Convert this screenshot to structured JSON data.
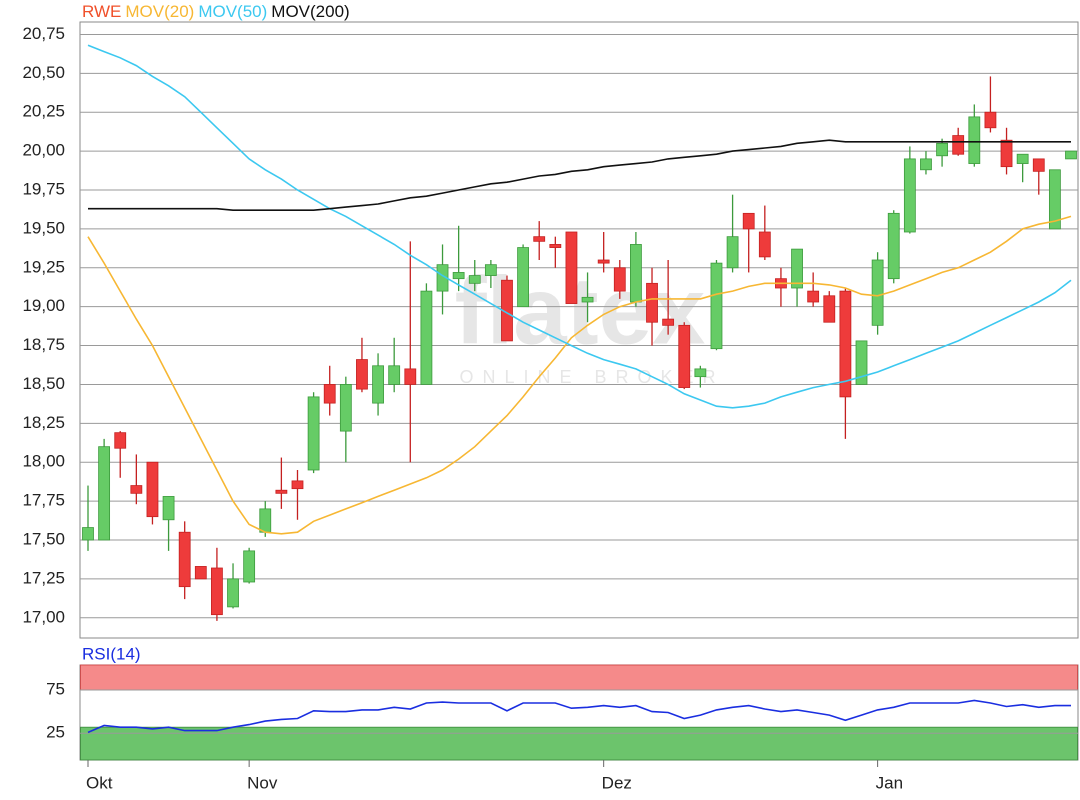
{
  "chart_data": [
    {
      "type": "candlestick",
      "name": "RWE",
      "name_color": "#f0502a",
      "up_color": "#66cc66",
      "up_edge": "#3c9a3c",
      "down_color": "#ee3b3b",
      "down_edge": "#c42020",
      "open": [
        17.5,
        17.5,
        18.19,
        17.85,
        18.0,
        17.63,
        17.55,
        17.33,
        17.32,
        17.07,
        17.23,
        17.55,
        17.82,
        17.88,
        17.95,
        18.5,
        18.2,
        18.66,
        18.38,
        18.5,
        18.6,
        18.5,
        19.1,
        19.18,
        19.15,
        19.2,
        19.17,
        19.0,
        19.45,
        19.4,
        19.48,
        19.03,
        19.3,
        19.25,
        19.03,
        19.15,
        18.92,
        18.88,
        18.55,
        18.73,
        19.25,
        19.6,
        19.48,
        19.18,
        19.12,
        19.1,
        19.07,
        19.1,
        18.5,
        18.88,
        19.18,
        19.48,
        19.88,
        19.97,
        20.1,
        19.92,
        20.25,
        20.07,
        19.92,
        19.95,
        19.5,
        19.95
      ],
      "high": [
        17.85,
        18.15,
        18.2,
        18.05,
        18.0,
        17.78,
        17.62,
        17.33,
        17.45,
        17.35,
        17.45,
        17.75,
        18.03,
        17.95,
        18.45,
        18.62,
        18.55,
        18.8,
        18.7,
        18.8,
        19.42,
        19.15,
        19.4,
        19.52,
        19.3,
        19.3,
        19.2,
        19.4,
        19.55,
        19.45,
        19.48,
        19.22,
        19.48,
        19.3,
        19.48,
        19.25,
        19.3,
        18.9,
        18.62,
        19.3,
        19.72,
        19.6,
        19.65,
        19.25,
        19.37,
        19.22,
        19.1,
        19.12,
        18.78,
        19.35,
        19.62,
        20.03,
        20.0,
        20.08,
        20.15,
        20.3,
        20.48,
        20.15,
        19.98,
        19.95,
        19.88,
        20.0
      ],
      "low": [
        17.43,
        17.5,
        17.9,
        17.73,
        17.6,
        17.43,
        17.12,
        17.25,
        16.98,
        17.06,
        17.22,
        17.52,
        17.7,
        17.63,
        17.93,
        18.3,
        18.0,
        18.45,
        18.3,
        18.45,
        18.0,
        18.5,
        18.95,
        19.1,
        19.1,
        19.12,
        18.78,
        19.0,
        19.3,
        19.25,
        19.02,
        18.9,
        19.22,
        19.05,
        19.0,
        18.75,
        18.82,
        18.47,
        18.48,
        18.72,
        19.22,
        19.22,
        19.3,
        19.0,
        19.0,
        19.0,
        18.9,
        18.15,
        18.5,
        18.82,
        19.15,
        19.47,
        19.85,
        19.9,
        19.97,
        19.9,
        20.12,
        19.85,
        19.8,
        19.72,
        19.5,
        19.95
      ],
      "close": [
        17.58,
        18.1,
        18.09,
        17.8,
        17.65,
        17.78,
        17.2,
        17.25,
        17.02,
        17.25,
        17.43,
        17.7,
        17.8,
        17.83,
        18.42,
        18.38,
        18.5,
        18.47,
        18.62,
        18.62,
        18.5,
        19.1,
        19.27,
        19.22,
        19.2,
        19.27,
        18.78,
        19.38,
        19.42,
        19.38,
        19.02,
        19.06,
        19.28,
        19.1,
        19.4,
        18.9,
        18.88,
        18.48,
        18.6,
        19.28,
        19.45,
        19.5,
        19.32,
        19.12,
        19.37,
        19.03,
        18.9,
        18.42,
        18.78,
        19.3,
        19.6,
        19.95,
        19.95,
        20.05,
        19.98,
        20.22,
        20.15,
        19.9,
        19.98,
        19.87,
        19.88,
        20.0
      ],
      "overlays": [
        {
          "name": "MOV(20)",
          "color": "#f7b733",
          "values": [
            19.45,
            19.28,
            19.1,
            18.92,
            18.75,
            18.55,
            18.35,
            18.15,
            17.95,
            17.75,
            17.6,
            17.55,
            17.54,
            17.55,
            17.62,
            17.66,
            17.7,
            17.74,
            17.78,
            17.82,
            17.86,
            17.9,
            17.95,
            18.02,
            18.1,
            18.2,
            18.3,
            18.42,
            18.55,
            18.67,
            18.8,
            18.88,
            18.95,
            19.0,
            19.03,
            19.05,
            19.05,
            19.05,
            19.05,
            19.08,
            19.1,
            19.13,
            19.15,
            19.15,
            19.15,
            19.15,
            19.14,
            19.12,
            19.08,
            19.07,
            19.1,
            19.14,
            19.18,
            19.22,
            19.25,
            19.3,
            19.35,
            19.42,
            19.5,
            19.53,
            19.55,
            19.58
          ]
        },
        {
          "name": "MOV(50)",
          "color": "#3cc8f0",
          "values": [
            20.68,
            20.64,
            20.6,
            20.55,
            20.48,
            20.42,
            20.35,
            20.25,
            20.15,
            20.05,
            19.95,
            19.88,
            19.82,
            19.75,
            19.69,
            19.63,
            19.58,
            19.52,
            19.46,
            19.4,
            19.33,
            19.27,
            19.2,
            19.14,
            19.08,
            19.02,
            18.96,
            18.9,
            18.85,
            18.8,
            18.75,
            18.7,
            18.66,
            18.63,
            18.6,
            18.55,
            18.5,
            18.44,
            18.4,
            18.36,
            18.35,
            18.36,
            18.38,
            18.42,
            18.45,
            18.48,
            18.5,
            18.52,
            18.55,
            18.58,
            18.62,
            18.66,
            18.7,
            18.74,
            18.78,
            18.83,
            18.88,
            18.93,
            18.98,
            19.03,
            19.09,
            19.17
          ]
        },
        {
          "name": "MOV(200)",
          "color": "#111111",
          "values": [
            19.63,
            19.63,
            19.63,
            19.63,
            19.63,
            19.63,
            19.63,
            19.63,
            19.63,
            19.62,
            19.62,
            19.62,
            19.62,
            19.62,
            19.62,
            19.63,
            19.64,
            19.65,
            19.66,
            19.68,
            19.7,
            19.71,
            19.73,
            19.75,
            19.77,
            19.79,
            19.8,
            19.82,
            19.84,
            19.85,
            19.87,
            19.88,
            19.9,
            19.91,
            19.92,
            19.93,
            19.95,
            19.96,
            19.97,
            19.98,
            20.0,
            20.01,
            20.02,
            20.03,
            20.05,
            20.06,
            20.07,
            20.06,
            20.06,
            20.06,
            20.06,
            20.06,
            20.06,
            20.06,
            20.06,
            20.06,
            20.06,
            20.06,
            20.06,
            20.06,
            20.06,
            20.06
          ]
        }
      ],
      "ylim": [
        16.87,
        20.83
      ],
      "yticks": [
        {
          "value": 17.0,
          "label": "17,00"
        },
        {
          "value": 17.25,
          "label": "17,25"
        },
        {
          "value": 17.5,
          "label": "17,50"
        },
        {
          "value": 17.75,
          "label": "17,75"
        },
        {
          "value": 18.0,
          "label": "18,00"
        },
        {
          "value": 18.25,
          "label": "18,25"
        },
        {
          "value": 18.5,
          "label": "18,50"
        },
        {
          "value": 18.75,
          "label": "18,75"
        },
        {
          "value": 19.0,
          "label": "19,00"
        },
        {
          "value": 19.25,
          "label": "19,25"
        },
        {
          "value": 19.5,
          "label": "19,50"
        },
        {
          "value": 19.75,
          "label": "19,75"
        },
        {
          "value": 20.0,
          "label": "20,00"
        },
        {
          "value": 20.25,
          "label": "20,25"
        },
        {
          "value": 20.5,
          "label": "20,50"
        },
        {
          "value": 20.75,
          "label": "20,75"
        }
      ],
      "grid": true,
      "watermark": {
        "logo": "flatex",
        "tagline": "ONLINE BROKER"
      }
    },
    {
      "type": "line",
      "series": [
        {
          "name": "RSI(14)",
          "color": "#1a2ee0",
          "values": [
            26,
            34,
            32,
            32,
            30,
            32,
            28,
            28,
            28,
            32,
            35,
            39,
            41,
            42,
            51,
            50,
            50,
            52,
            52,
            55,
            53,
            60,
            61,
            60,
            60,
            60,
            51,
            60,
            60,
            60,
            54,
            55,
            57,
            55,
            57,
            50,
            49,
            42,
            46,
            52,
            55,
            57,
            53,
            50,
            52,
            49,
            46,
            40,
            46,
            52,
            55,
            60,
            60,
            60,
            60,
            63,
            60,
            56,
            58,
            55,
            57,
            57
          ]
        }
      ],
      "categories": [
        "Okt",
        null,
        null,
        null,
        null,
        null,
        null,
        null,
        null,
        null,
        "Nov",
        null,
        null,
        null,
        null,
        null,
        null,
        null,
        null,
        null,
        null,
        null,
        null,
        null,
        null,
        null,
        null,
        null,
        null,
        null,
        null,
        null,
        "Dez",
        null,
        null,
        null,
        null,
        null,
        null,
        null,
        null,
        null,
        null,
        null,
        null,
        null,
        null,
        null,
        null,
        "Jan",
        null,
        null,
        null,
        null,
        null,
        null,
        null,
        null,
        null,
        null,
        null,
        null
      ],
      "ylim": [
        -6,
        104
      ],
      "yticks": [
        25,
        75
      ],
      "grid": true,
      "zones": [
        {
          "from": 75,
          "to": 104,
          "color": "#f58a8a",
          "edge": "#d04040"
        },
        {
          "from": -6,
          "to": 32,
          "color": "#6cc46c",
          "edge": "#3a8a3a"
        }
      ]
    }
  ]
}
